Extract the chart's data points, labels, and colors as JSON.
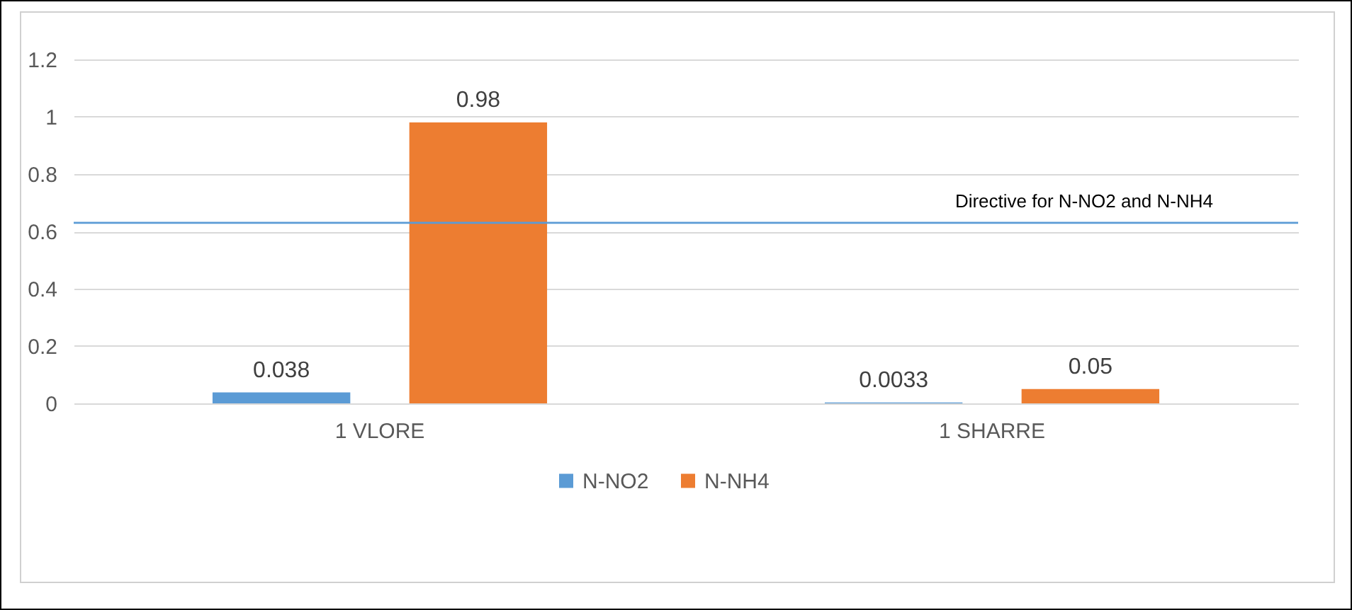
{
  "chart_data": {
    "type": "bar",
    "categories": [
      "1 VLORE",
      "1 SHARRE"
    ],
    "series": [
      {
        "name": "N-NO2",
        "color": "#5b9bd5",
        "values": [
          0.038,
          0.0033
        ]
      },
      {
        "name": "N-NH4",
        "color": "#ed7d31",
        "values": [
          0.98,
          0.05
        ]
      }
    ],
    "ylim": [
      0,
      1.2
    ],
    "yticks": [
      0,
      0.2,
      0.4,
      0.6,
      0.8,
      1,
      1.2
    ],
    "grid": "y",
    "legend": "bottom",
    "data_labels": true,
    "ref_lines": [
      {
        "axis": "y",
        "value": 0.63,
        "label": "Directive for N-NO2 and N-NH4",
        "color": "#5b9bd5"
      }
    ]
  }
}
